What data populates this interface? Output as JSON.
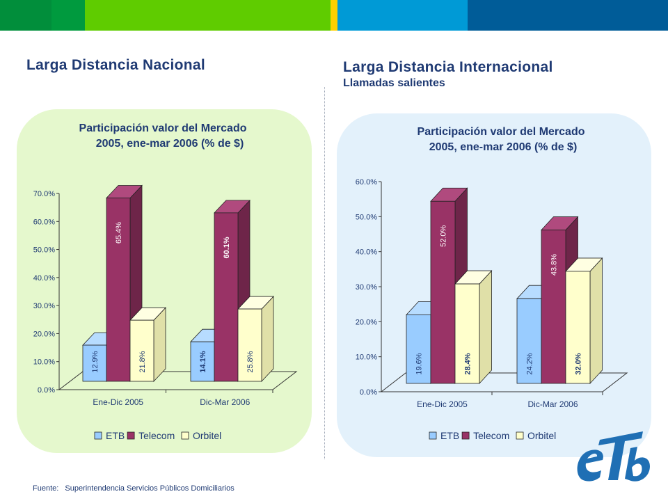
{
  "colors": {
    "bar_green_dark": "#018e3b",
    "bar_green": "#009a3e",
    "bar_lime": "#5fcc00",
    "bar_yellow": "#ffd000",
    "bar_cyan": "#009ad6",
    "bar_blue": "#005c98",
    "title_navy": "#1f3a73",
    "etb": "#99ccff",
    "telecom": "#993366",
    "orbitel": "#ffffcc",
    "logo_blue": "#1f6fb4"
  },
  "sections": {
    "left_title": "Larga Distancia Nacional",
    "right_title": "Larga Distancia Internacional",
    "right_subtitle": "Llamadas salientes"
  },
  "chart_titles": {
    "left_line1": "Participación valor del Mercado",
    "left_line2": "2005, ene-mar 2006 (% de $)",
    "right_line1": "Participación valor del Mercado",
    "right_line2": "2005, ene-mar 2006 (% de $)"
  },
  "chart_data": [
    {
      "type": "bar",
      "title": "Participación valor del Mercado 2005, ene-mar 2006 (% de $)",
      "categories": [
        "Ene-Dic 2005",
        "Dic-Mar 2006"
      ],
      "series": [
        {
          "name": "ETB",
          "values": [
            12.9,
            14.1
          ],
          "labels": [
            "12.9%",
            "14.1%"
          ]
        },
        {
          "name": "Telecom",
          "values": [
            65.4,
            60.1
          ],
          "labels": [
            "65.4%",
            "60.1%"
          ]
        },
        {
          "name": "Orbitel",
          "values": [
            21.8,
            25.8
          ],
          "labels": [
            "21.8%",
            "25.8%"
          ]
        }
      ],
      "ylim": [
        0,
        70
      ],
      "yticks": [
        "0.0%",
        "10.0%",
        "20.0%",
        "30.0%",
        "40.0%",
        "50.0%",
        "60.0%",
        "70.0%"
      ],
      "legend": "bottom",
      "style": "3d"
    },
    {
      "type": "bar",
      "title": "Participación valor del Mercado 2005, ene-mar 2006 (% de $)",
      "categories": [
        "Ene-Dic 2005",
        "Dic-Mar 2006"
      ],
      "series": [
        {
          "name": "ETB",
          "values": [
            19.6,
            24.2
          ],
          "labels": [
            "19.6%",
            "24.2%"
          ]
        },
        {
          "name": "Telecom",
          "values": [
            52.0,
            43.8
          ],
          "labels": [
            "52.0%",
            "43.8%"
          ]
        },
        {
          "name": "Orbitel",
          "values": [
            28.4,
            32.0
          ],
          "labels": [
            "28.4%",
            "32.0%"
          ]
        }
      ],
      "ylim": [
        0,
        60
      ],
      "yticks": [
        "0.0%",
        "10.0%",
        "20.0%",
        "30.0%",
        "40.0%",
        "50.0%",
        "60.0%"
      ],
      "legend": "bottom",
      "style": "3d"
    }
  ],
  "footer": {
    "source_label": "Fuente:",
    "source_text": "Superintendencia Servicios Públicos Domiciliarios"
  },
  "logo": {
    "text": "eTb"
  }
}
